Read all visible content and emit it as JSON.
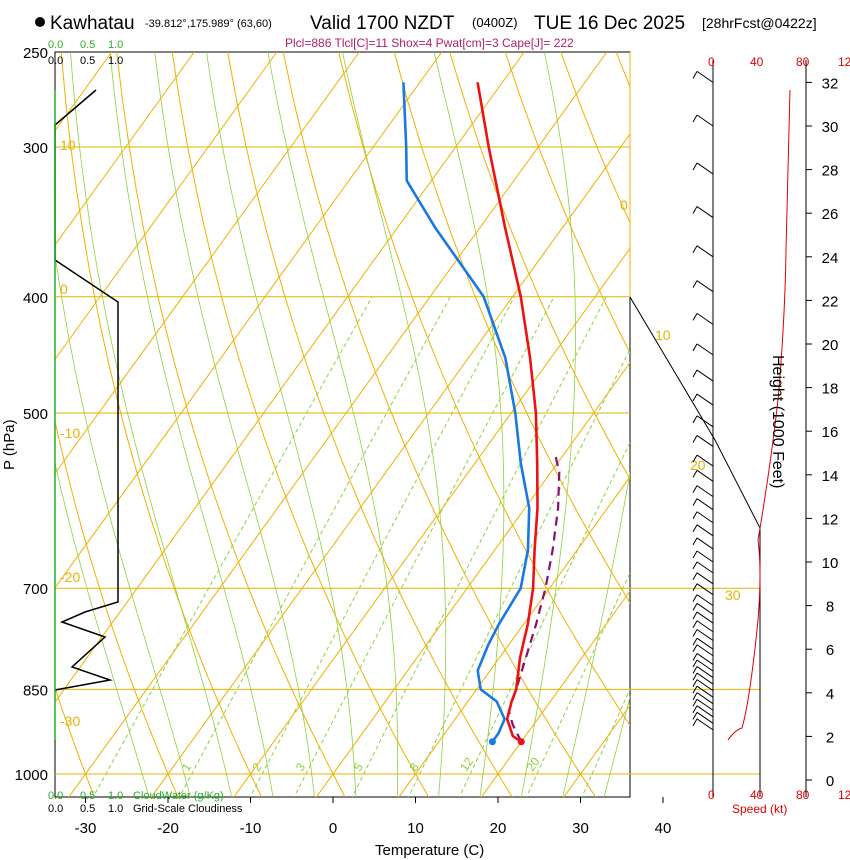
{
  "header": {
    "station": "Kawhatau",
    "coords": "-39.812°,175.989° (63,60)",
    "valid": "Valid 1700 NZDT",
    "utc": "(0400Z)",
    "date": "TUE 16 Dec 2025",
    "forecast": "[28hrFcst@0422z]",
    "indices": "Plcl=886 Tlcl[C]=11 Shox=4 Pwat[cm]=3 Cape[J]= 222"
  },
  "cloud_scale": {
    "top_green": [
      "0.0",
      "0.5",
      "1.0"
    ],
    "top_black": [
      "0.0",
      "0.5",
      "1.0"
    ],
    "bottom_green": [
      "0.0",
      "0.5",
      "1.0"
    ],
    "bottom_black": [
      "0.0",
      "0.5",
      "1.0"
    ],
    "cloudwater_label": "CloudWater (g/Kg)",
    "cloudiness_label": "Grid-Scale Cloudiness"
  },
  "speed_scale": {
    "ticks": [
      "0",
      "40",
      "80",
      "12"
    ],
    "label": "Speed (kt)"
  },
  "colors": {
    "temperature": "#ee1111",
    "dewpoint": "#1a78e0",
    "parcel": "#8a1070",
    "isotherm": "#f0b000",
    "mixing_ratio": "#8cd23a",
    "cloudwater": "#22b022",
    "speed": "#e00000"
  },
  "chart_data": {
    "type": "skew-t",
    "xlabel": "Temperature (C)",
    "ylabel": "P (hPa)",
    "height_label": "Height (1000 Feet)",
    "x_ticks": [
      -30,
      -20,
      -10,
      0,
      10,
      20,
      30,
      40
    ],
    "pressure_ticks": [
      1000,
      850,
      700,
      500,
      400,
      300,
      250
    ],
    "height_ticks": [
      0,
      2,
      4,
      6,
      8,
      10,
      12,
      14,
      16,
      18,
      20,
      22,
      24,
      26,
      28,
      30,
      32
    ],
    "skewed_isotherm_labels": [
      "0",
      "10",
      "20",
      "30"
    ],
    "left_isotherm_labels": [
      "10",
      "0",
      "-10",
      "-20",
      "-30"
    ],
    "mixing_ratio_labels": [
      "1",
      "2",
      "3",
      "5",
      "8",
      "12",
      "20"
    ],
    "temperature_profile": [
      {
        "p": 940,
        "t": 20.0
      },
      {
        "p": 930,
        "t": 18.5
      },
      {
        "p": 900,
        "t": 16.3
      },
      {
        "p": 870,
        "t": 15.3
      },
      {
        "p": 850,
        "t": 14.8
      },
      {
        "p": 800,
        "t": 12.5
      },
      {
        "p": 750,
        "t": 10.5
      },
      {
        "p": 700,
        "t": 8.0
      },
      {
        "p": 650,
        "t": 4.8
      },
      {
        "p": 600,
        "t": 1.5
      },
      {
        "p": 550,
        "t": -2.5
      },
      {
        "p": 500,
        "t": -7.0
      },
      {
        "p": 450,
        "t": -12.5
      },
      {
        "p": 400,
        "t": -19.0
      },
      {
        "p": 350,
        "t": -27.0
      },
      {
        "p": 300,
        "t": -36.0
      },
      {
        "p": 265,
        "t": -43.0
      }
    ],
    "dewpoint_profile": [
      {
        "p": 940,
        "t": 16.5
      },
      {
        "p": 925,
        "t": 16.5
      },
      {
        "p": 900,
        "t": 16.0
      },
      {
        "p": 870,
        "t": 13.5
      },
      {
        "p": 850,
        "t": 10.5
      },
      {
        "p": 820,
        "t": 8.5
      },
      {
        "p": 780,
        "t": 7.5
      },
      {
        "p": 750,
        "t": 7.0
      },
      {
        "p": 700,
        "t": 6.5
      },
      {
        "p": 650,
        "t": 4.0
      },
      {
        "p": 600,
        "t": 0.5
      },
      {
        "p": 550,
        "t": -4.5
      },
      {
        "p": 500,
        "t": -9.5
      },
      {
        "p": 450,
        "t": -15.5
      },
      {
        "p": 400,
        "t": -23.5
      },
      {
        "p": 350,
        "t": -35.5
      },
      {
        "p": 320,
        "t": -43.0
      },
      {
        "p": 300,
        "t": -46.0
      },
      {
        "p": 265,
        "t": -52.0
      }
    ],
    "parcel_profile": [
      {
        "p": 940,
        "t": 20.0
      },
      {
        "p": 910,
        "t": 17.5
      },
      {
        "p": 886,
        "t": 15.8
      },
      {
        "p": 850,
        "t": 14.8
      },
      {
        "p": 800,
        "t": 13.2
      },
      {
        "p": 750,
        "t": 11.5
      },
      {
        "p": 700,
        "t": 9.5
      },
      {
        "p": 650,
        "t": 7.0
      },
      {
        "p": 600,
        "t": 4.0
      },
      {
        "p": 560,
        "t": 1.0
      },
      {
        "p": 540,
        "t": -1.2
      }
    ],
    "wind_height_kft": [
      2.3,
      2.6,
      2.9,
      3.2,
      3.5,
      3.8,
      4.1,
      4.4,
      4.7,
      5.0,
      5.3,
      5.7,
      6.0,
      6.4,
      6.8,
      7.2,
      7.6,
      8.0,
      8.5,
      9.0,
      9.5,
      10.0,
      10.6,
      11.2,
      11.8,
      12.4,
      13.0,
      13.7,
      14.4,
      15.3,
      16.2,
      17.2,
      18.3,
      19.5,
      20.9,
      22.4,
      24.0,
      25.8,
      27.8,
      30.0,
      32.0
    ]
  }
}
